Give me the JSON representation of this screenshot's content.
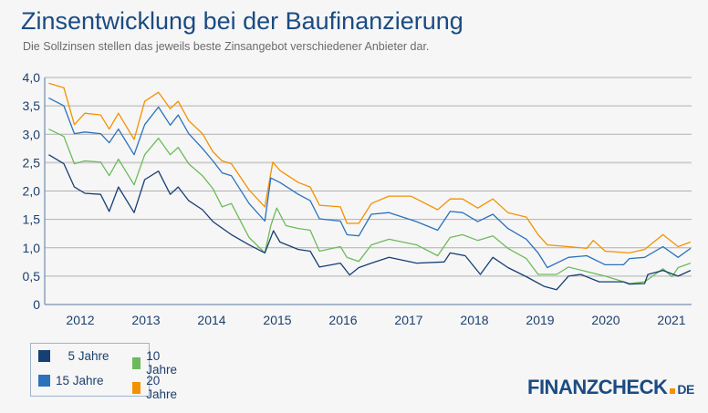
{
  "title": "Zinsentwicklung bei der Baufinanzierung",
  "subtitle": "Die Sollzinsen stellen das jeweils beste Zinsangebot verschiedener Anbieter dar.",
  "logo": {
    "text": "FINANZCHECK",
    "suffix": "DE",
    "dot_color": "#f39200"
  },
  "chart_data": {
    "type": "line",
    "title": "Zinsentwicklung bei der Baufinanzierung",
    "xlabel": "",
    "ylabel": "",
    "ylim": [
      0,
      4
    ],
    "xlim": [
      2012,
      2021.8
    ],
    "yticks": [
      "0",
      "0,5",
      "1,0",
      "1,5",
      "2,0",
      "2,5",
      "3,0",
      "3,5",
      "4,0"
    ],
    "xticks": [
      "2012",
      "2013",
      "2014",
      "2015",
      "2016",
      "2017",
      "2018",
      "2019",
      "2020",
      "2021"
    ],
    "grid": true,
    "legend_placement": "bottom-left",
    "series": [
      {
        "name": "5 Jahre",
        "color": "#163f74",
        "points": [
          [
            2012.02,
            2.64
          ],
          [
            2012.25,
            2.48
          ],
          [
            2012.41,
            2.07
          ],
          [
            2012.57,
            1.96
          ],
          [
            2012.81,
            1.94
          ],
          [
            2012.94,
            1.64
          ],
          [
            2013.08,
            2.07
          ],
          [
            2013.32,
            1.62
          ],
          [
            2013.48,
            2.2
          ],
          [
            2013.69,
            2.35
          ],
          [
            2013.87,
            1.94
          ],
          [
            2013.99,
            2.07
          ],
          [
            2014.15,
            1.83
          ],
          [
            2014.36,
            1.67
          ],
          [
            2014.52,
            1.46
          ],
          [
            2014.8,
            1.23
          ],
          [
            2015.07,
            1.05
          ],
          [
            2015.31,
            0.91
          ],
          [
            2015.44,
            1.3
          ],
          [
            2015.54,
            1.1
          ],
          [
            2015.82,
            0.97
          ],
          [
            2016.0,
            0.94
          ],
          [
            2016.14,
            0.66
          ],
          [
            2016.46,
            0.73
          ],
          [
            2016.6,
            0.52
          ],
          [
            2016.74,
            0.65
          ],
          [
            2016.93,
            0.73
          ],
          [
            2017.2,
            0.83
          ],
          [
            2017.62,
            0.73
          ],
          [
            2018.04,
            0.75
          ],
          [
            2018.13,
            0.91
          ],
          [
            2018.36,
            0.86
          ],
          [
            2018.59,
            0.53
          ],
          [
            2018.78,
            0.83
          ],
          [
            2019.01,
            0.65
          ],
          [
            2019.29,
            0.49
          ],
          [
            2019.56,
            0.32
          ],
          [
            2019.75,
            0.26
          ],
          [
            2019.93,
            0.5
          ],
          [
            2020.12,
            0.53
          ],
          [
            2020.4,
            0.4
          ],
          [
            2020.77,
            0.4
          ],
          [
            2020.86,
            0.36
          ],
          [
            2021.09,
            0.37
          ],
          [
            2021.14,
            0.53
          ],
          [
            2021.37,
            0.6
          ],
          [
            2021.6,
            0.5
          ],
          [
            2021.79,
            0.6
          ]
        ]
      },
      {
        "name": "10 Jahre",
        "color": "#6cbb5a",
        "points": [
          [
            2012.02,
            3.09
          ],
          [
            2012.25,
            2.96
          ],
          [
            2012.41,
            2.48
          ],
          [
            2012.57,
            2.53
          ],
          [
            2012.81,
            2.51
          ],
          [
            2012.94,
            2.27
          ],
          [
            2013.08,
            2.56
          ],
          [
            2013.32,
            2.11
          ],
          [
            2013.48,
            2.64
          ],
          [
            2013.69,
            2.93
          ],
          [
            2013.87,
            2.64
          ],
          [
            2013.99,
            2.77
          ],
          [
            2014.15,
            2.48
          ],
          [
            2014.36,
            2.27
          ],
          [
            2014.52,
            2.04
          ],
          [
            2014.66,
            1.72
          ],
          [
            2014.8,
            1.78
          ],
          [
            2015.07,
            1.18
          ],
          [
            2015.31,
            0.91
          ],
          [
            2015.4,
            1.39
          ],
          [
            2015.49,
            1.7
          ],
          [
            2015.63,
            1.39
          ],
          [
            2015.82,
            1.34
          ],
          [
            2016.0,
            1.31
          ],
          [
            2016.14,
            0.94
          ],
          [
            2016.46,
            1.02
          ],
          [
            2016.56,
            0.83
          ],
          [
            2016.74,
            0.76
          ],
          [
            2016.93,
            1.05
          ],
          [
            2017.2,
            1.15
          ],
          [
            2017.62,
            1.05
          ],
          [
            2017.94,
            0.86
          ],
          [
            2018.13,
            1.18
          ],
          [
            2018.32,
            1.23
          ],
          [
            2018.55,
            1.13
          ],
          [
            2018.78,
            1.21
          ],
          [
            2019.01,
            0.99
          ],
          [
            2019.29,
            0.81
          ],
          [
            2019.47,
            0.53
          ],
          [
            2019.75,
            0.53
          ],
          [
            2019.93,
            0.66
          ],
          [
            2020.21,
            0.58
          ],
          [
            2020.49,
            0.5
          ],
          [
            2020.86,
            0.37
          ],
          [
            2021.09,
            0.4
          ],
          [
            2021.37,
            0.63
          ],
          [
            2021.51,
            0.49
          ],
          [
            2021.6,
            0.65
          ],
          [
            2021.79,
            0.73
          ]
        ]
      },
      {
        "name": "15 Jahre",
        "color": "#2a72bd",
        "points": [
          [
            2012.02,
            3.64
          ],
          [
            2012.25,
            3.5
          ],
          [
            2012.41,
            3.01
          ],
          [
            2012.57,
            3.04
          ],
          [
            2012.81,
            3.01
          ],
          [
            2012.94,
            2.85
          ],
          [
            2013.08,
            3.09
          ],
          [
            2013.32,
            2.64
          ],
          [
            2013.48,
            3.17
          ],
          [
            2013.69,
            3.48
          ],
          [
            2013.87,
            3.16
          ],
          [
            2013.99,
            3.34
          ],
          [
            2014.15,
            3.01
          ],
          [
            2014.36,
            2.75
          ],
          [
            2014.52,
            2.53
          ],
          [
            2014.66,
            2.32
          ],
          [
            2014.8,
            2.27
          ],
          [
            2015.07,
            1.78
          ],
          [
            2015.31,
            1.47
          ],
          [
            2015.4,
            2.23
          ],
          [
            2015.54,
            2.15
          ],
          [
            2015.82,
            1.94
          ],
          [
            2016.0,
            1.83
          ],
          [
            2016.14,
            1.51
          ],
          [
            2016.46,
            1.47
          ],
          [
            2016.56,
            1.23
          ],
          [
            2016.74,
            1.21
          ],
          [
            2016.93,
            1.59
          ],
          [
            2017.2,
            1.62
          ],
          [
            2017.62,
            1.46
          ],
          [
            2017.94,
            1.31
          ],
          [
            2018.13,
            1.64
          ],
          [
            2018.32,
            1.62
          ],
          [
            2018.55,
            1.46
          ],
          [
            2018.78,
            1.59
          ],
          [
            2019.01,
            1.34
          ],
          [
            2019.29,
            1.15
          ],
          [
            2019.47,
            0.91
          ],
          [
            2019.61,
            0.65
          ],
          [
            2019.93,
            0.83
          ],
          [
            2020.21,
            0.86
          ],
          [
            2020.49,
            0.7
          ],
          [
            2020.77,
            0.7
          ],
          [
            2020.86,
            0.81
          ],
          [
            2021.09,
            0.83
          ],
          [
            2021.37,
            1.02
          ],
          [
            2021.6,
            0.83
          ],
          [
            2021.79,
            0.99
          ]
        ]
      },
      {
        "name": "20 Jahre",
        "color": "#f39200",
        "points": [
          [
            2012.02,
            3.9
          ],
          [
            2012.25,
            3.82
          ],
          [
            2012.41,
            3.17
          ],
          [
            2012.57,
            3.37
          ],
          [
            2012.81,
            3.34
          ],
          [
            2012.94,
            3.09
          ],
          [
            2013.08,
            3.37
          ],
          [
            2013.32,
            2.91
          ],
          [
            2013.48,
            3.58
          ],
          [
            2013.69,
            3.74
          ],
          [
            2013.87,
            3.45
          ],
          [
            2013.99,
            3.58
          ],
          [
            2014.15,
            3.24
          ],
          [
            2014.36,
            3.01
          ],
          [
            2014.52,
            2.69
          ],
          [
            2014.66,
            2.53
          ],
          [
            2014.8,
            2.48
          ],
          [
            2015.07,
            2.02
          ],
          [
            2015.31,
            1.72
          ],
          [
            2015.43,
            2.51
          ],
          [
            2015.54,
            2.36
          ],
          [
            2015.82,
            2.15
          ],
          [
            2016.0,
            2.07
          ],
          [
            2016.14,
            1.75
          ],
          [
            2016.46,
            1.72
          ],
          [
            2016.56,
            1.43
          ],
          [
            2016.74,
            1.43
          ],
          [
            2016.93,
            1.78
          ],
          [
            2017.2,
            1.91
          ],
          [
            2017.53,
            1.91
          ],
          [
            2017.94,
            1.67
          ],
          [
            2018.13,
            1.86
          ],
          [
            2018.32,
            1.86
          ],
          [
            2018.55,
            1.7
          ],
          [
            2018.78,
            1.86
          ],
          [
            2019.01,
            1.62
          ],
          [
            2019.29,
            1.54
          ],
          [
            2019.47,
            1.23
          ],
          [
            2019.61,
            1.05
          ],
          [
            2019.93,
            1.02
          ],
          [
            2020.21,
            0.99
          ],
          [
            2020.31,
            1.13
          ],
          [
            2020.49,
            0.94
          ],
          [
            2020.86,
            0.91
          ],
          [
            2021.09,
            0.97
          ],
          [
            2021.37,
            1.23
          ],
          [
            2021.6,
            1.02
          ],
          [
            2021.79,
            1.1
          ]
        ]
      }
    ]
  }
}
